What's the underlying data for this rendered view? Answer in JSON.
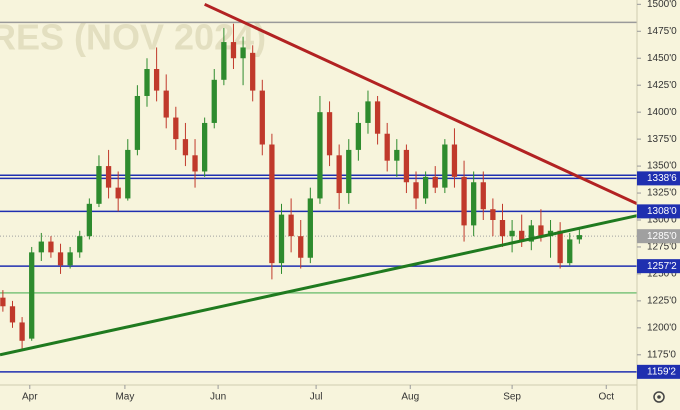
{
  "chart_data": {
    "type": "candlestick",
    "watermark": "RES (NOV 2024)",
    "up_color": "#2e8b2e",
    "down_color": "#c0392b",
    "xlim": [
      -0.3,
      66
    ],
    "xticks": [
      {
        "value": 2.8,
        "label": "Apr"
      },
      {
        "value": 12.7,
        "label": "May"
      },
      {
        "value": 22.4,
        "label": "Jun"
      },
      {
        "value": 32.6,
        "label": "Jul"
      },
      {
        "value": 42.4,
        "label": "Aug"
      },
      {
        "value": 53,
        "label": "Sep"
      },
      {
        "value": 62.8,
        "label": "Oct"
      }
    ],
    "ylim": [
      1147,
      1504
    ],
    "yticks": [
      {
        "value": 1175,
        "label": "1175'0"
      },
      {
        "value": 1200,
        "label": "1200'0"
      },
      {
        "value": 1225,
        "label": "1225'0"
      },
      {
        "value": 1250,
        "label": "1250'0"
      },
      {
        "value": 1275,
        "label": "1275'0"
      },
      {
        "value": 1300,
        "label": "1300'0"
      },
      {
        "value": 1325,
        "label": "1325'0"
      },
      {
        "value": 1350,
        "label": "1350'0"
      },
      {
        "value": 1375,
        "label": "1375'0"
      },
      {
        "value": 1400,
        "label": "1400'0"
      },
      {
        "value": 1425,
        "label": "1425'0"
      },
      {
        "value": 1450,
        "label": "1450'0"
      },
      {
        "value": 1475,
        "label": "1475'0"
      },
      {
        "value": 1500,
        "label": "1500'0"
      }
    ],
    "candles": {
      "x": [
        0,
        1,
        2,
        3,
        4,
        5,
        6,
        7,
        8,
        9,
        10,
        11,
        12,
        13,
        14,
        15,
        16,
        17,
        18,
        19,
        20,
        21,
        22,
        23,
        24,
        25,
        26,
        27,
        28,
        29,
        30,
        31,
        32,
        33,
        34,
        35,
        36,
        37,
        38,
        39,
        40,
        41,
        42,
        43,
        44,
        45,
        46,
        47,
        48,
        49,
        50,
        51,
        52,
        53,
        54,
        55,
        56,
        57,
        58,
        59,
        60
      ],
      "open": [
        1228,
        1220,
        1205,
        1190,
        1270,
        1280,
        1270,
        1258,
        1270,
        1285,
        1315,
        1350,
        1330,
        1320,
        1365,
        1415,
        1440,
        1420,
        1395,
        1375,
        1360,
        1345,
        1390,
        1430,
        1465,
        1450,
        1455,
        1420,
        1370,
        1260,
        1305,
        1285,
        1265,
        1320,
        1400,
        1360,
        1325,
        1365,
        1390,
        1410,
        1380,
        1355,
        1365,
        1335,
        1320,
        1340,
        1330,
        1370,
        1340,
        1295,
        1335,
        1310,
        1300,
        1285,
        1290,
        1280,
        1295,
        1285,
        1290,
        1260,
        1282
      ],
      "high": [
        1235,
        1225,
        1210,
        1275,
        1288,
        1285,
        1278,
        1275,
        1290,
        1320,
        1360,
        1365,
        1345,
        1375,
        1425,
        1450,
        1460,
        1435,
        1405,
        1390,
        1375,
        1395,
        1440,
        1478,
        1482,
        1470,
        1462,
        1430,
        1380,
        1315,
        1320,
        1300,
        1330,
        1415,
        1410,
        1370,
        1375,
        1400,
        1420,
        1415,
        1390,
        1375,
        1370,
        1345,
        1345,
        1350,
        1375,
        1385,
        1355,
        1345,
        1345,
        1320,
        1315,
        1300,
        1305,
        1300,
        1310,
        1300,
        1298,
        1288,
        1292
      ],
      "low": [
        1215,
        1200,
        1180,
        1188,
        1262,
        1265,
        1250,
        1255,
        1265,
        1282,
        1312,
        1320,
        1308,
        1318,
        1360,
        1405,
        1410,
        1385,
        1365,
        1350,
        1330,
        1340,
        1385,
        1425,
        1440,
        1425,
        1410,
        1360,
        1245,
        1250,
        1270,
        1255,
        1260,
        1315,
        1350,
        1310,
        1315,
        1355,
        1380,
        1370,
        1345,
        1340,
        1325,
        1310,
        1315,
        1325,
        1325,
        1330,
        1280,
        1285,
        1300,
        1285,
        1275,
        1270,
        1275,
        1272,
        1280,
        1265,
        1255,
        1258,
        1278
      ],
      "close": [
        1220,
        1205,
        1188,
        1270,
        1280,
        1270,
        1258,
        1270,
        1285,
        1315,
        1350,
        1330,
        1320,
        1365,
        1415,
        1440,
        1420,
        1395,
        1375,
        1360,
        1345,
        1390,
        1430,
        1465,
        1450,
        1460,
        1420,
        1370,
        1260,
        1305,
        1285,
        1265,
        1320,
        1400,
        1360,
        1325,
        1365,
        1390,
        1410,
        1380,
        1355,
        1365,
        1335,
        1320,
        1340,
        1330,
        1370,
        1340,
        1295,
        1335,
        1310,
        1300,
        1285,
        1290,
        1280,
        1295,
        1285,
        1290,
        1260,
        1282,
        1286
      ]
    },
    "levels": [
      {
        "value": 1483.3,
        "color": "#9a9a9a"
      },
      {
        "value": 1341.5,
        "color": "#1f2fb0"
      },
      {
        "value": 1338.6,
        "label": "1338'6",
        "color": "#1f2fb0"
      },
      {
        "value": 1308.0,
        "label": "1308'0",
        "color": "#1f2fb0"
      },
      {
        "value": 1285.0,
        "label": "1285'0",
        "color": "#a0a0a0",
        "dashed": true
      },
      {
        "value": 1257.2,
        "label": "1257'2",
        "color": "#1f2fb0"
      },
      {
        "value": 1232.4,
        "color": "#7cc47c"
      },
      {
        "value": 1159.2,
        "label": "1159'2",
        "color": "#1f2fb0"
      }
    ],
    "trendlines": [
      {
        "color": "#b22222",
        "start": [
          21.0,
          1500
        ],
        "end": [
          66.3,
          1313.9
        ]
      },
      {
        "color": "#1f7a1f",
        "start": [
          -0.3,
          1175
        ],
        "end": [
          66.3,
          1304.6
        ]
      }
    ]
  }
}
